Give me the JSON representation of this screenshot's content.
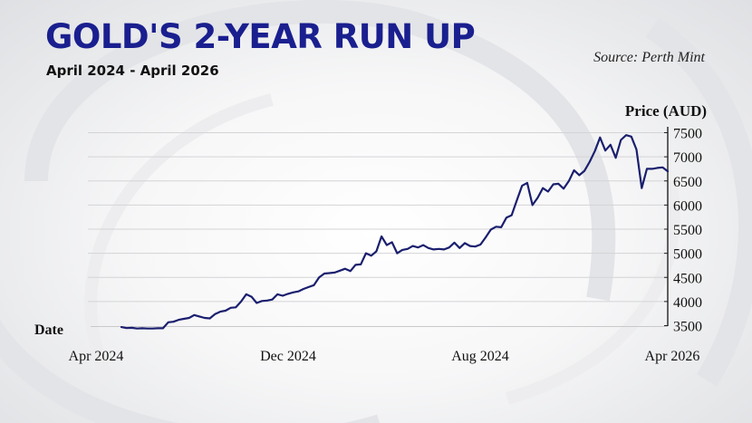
{
  "header": {
    "title": "GOLD'S 2-YEAR RUN UP",
    "subtitle": "April 2024 - April 2026",
    "source": "Source: Perth Mint"
  },
  "chart_data": {
    "type": "line",
    "title": "GOLD'S 2-YEAR RUN UP",
    "subtitle": "April 2024 - April 2026",
    "xlabel": "Date",
    "ylabel": "Price (AUD)",
    "x_tick_labels": [
      "Apr 2024",
      "Dec 2024",
      "Aug 2024",
      "Apr 2026"
    ],
    "y_ticks": [
      3500,
      4000,
      4500,
      5000,
      5500,
      6000,
      6500,
      7000,
      7500
    ],
    "ylim": [
      3500,
      7500
    ],
    "grid": "horizontal",
    "y_axis_side": "right",
    "color": "#1a1f6e",
    "series": [
      {
        "values": [
          3470,
          3450,
          3455,
          3440,
          3445,
          3440,
          3440,
          3445,
          3445,
          3570,
          3580,
          3620,
          3640,
          3660,
          3720,
          3690,
          3660,
          3650,
          3740,
          3790,
          3810,
          3870,
          3880,
          4000,
          4150,
          4100,
          3970,
          4010,
          4020,
          4040,
          4150,
          4120,
          4160,
          4190,
          4210,
          4260,
          4300,
          4340,
          4500,
          4580,
          4590,
          4600,
          4640,
          4680,
          4630,
          4760,
          4770,
          5000,
          4950,
          5040,
          5350,
          5170,
          5230,
          5000,
          5070,
          5090,
          5150,
          5120,
          5170,
          5110,
          5080,
          5090,
          5080,
          5120,
          5220,
          5110,
          5210,
          5150,
          5140,
          5180,
          5330,
          5490,
          5550,
          5540,
          5740,
          5790,
          6100,
          6400,
          6460,
          6000,
          6150,
          6350,
          6280,
          6430,
          6440,
          6340,
          6500,
          6720,
          6620,
          6710,
          6900,
          7120,
          7400,
          7130,
          7250,
          6980,
          7350,
          7450,
          7420,
          7150,
          6350,
          6750,
          6750,
          6770,
          6780,
          6700
        ]
      }
    ]
  }
}
